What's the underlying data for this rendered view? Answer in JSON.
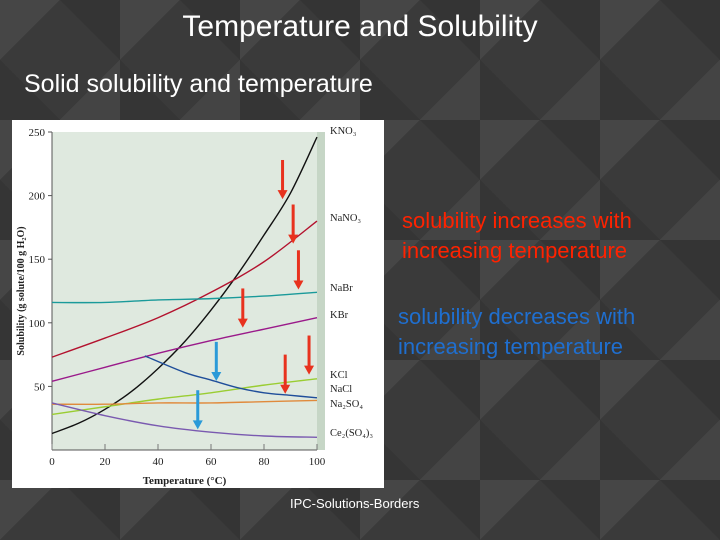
{
  "slide": {
    "title": "Temperature and Solubility",
    "subtitle": "Solid solubility and temperature",
    "callout_increase": "solubility increases with increasing temperature",
    "callout_decrease": "solubility decreases with increasing temperature",
    "footer": "IPC-Solutions-Borders"
  },
  "colors": {
    "increase_text": "#ff2200",
    "decrease_text": "#1f6fd0",
    "red_arrow": "#e8321e",
    "blue_arrow": "#2a9ad8"
  },
  "chart_data": {
    "type": "line",
    "xlabel": "Temperature (°C)",
    "ylabel": "Solubility (g solute/100 g H₂O)",
    "xlim": [
      0,
      100
    ],
    "ylim": [
      0,
      250
    ],
    "xticks": [
      0,
      20,
      40,
      60,
      80,
      100
    ],
    "yticks": [
      50,
      100,
      150,
      200,
      250
    ],
    "grid": false,
    "series": [
      {
        "name": "KNO₃",
        "color": "#111111",
        "x": [
          0,
          10,
          20,
          30,
          40,
          50,
          60,
          70,
          80,
          90,
          100
        ],
        "y": [
          13,
          21,
          32,
          46,
          64,
          85,
          110,
          138,
          169,
          202,
          246
        ]
      },
      {
        "name": "NaNO₃",
        "color": "#b3122e",
        "x": [
          0,
          20,
          40,
          60,
          80,
          100
        ],
        "y": [
          73,
          88,
          104,
          124,
          148,
          180
        ]
      },
      {
        "name": "NaBr",
        "color": "#1a9a9a",
        "x": [
          0,
          20,
          40,
          60,
          80,
          100
        ],
        "y": [
          116,
          116,
          118,
          119,
          121,
          124
        ]
      },
      {
        "name": "KBr",
        "color": "#9a1a8a",
        "x": [
          0,
          20,
          40,
          60,
          80,
          100
        ],
        "y": [
          54,
          65,
          76,
          86,
          95,
          104
        ]
      },
      {
        "name": "KCl",
        "color": "#9acd32",
        "x": [
          0,
          20,
          40,
          60,
          80,
          100
        ],
        "y": [
          28,
          34,
          40,
          45,
          51,
          56
        ]
      },
      {
        "name": "NaCl",
        "color": "#e08a3c",
        "x": [
          0,
          20,
          40,
          60,
          80,
          100
        ],
        "y": [
          36,
          36,
          37,
          37,
          38,
          39
        ]
      },
      {
        "name": "Na₂SO₄",
        "color": "#1f4e9a",
        "x": [
          35,
          50,
          60,
          70,
          80,
          90,
          100
        ],
        "y": [
          74,
          61,
          55,
          49,
          45,
          43,
          41
        ]
      },
      {
        "name": "Ce₂(SO₄)₃",
        "color": "#7a5ab0",
        "x": [
          0,
          20,
          40,
          60,
          80,
          100
        ],
        "y": [
          37,
          27,
          19,
          14,
          11,
          10
        ]
      }
    ],
    "annotations": {
      "increase_arrows": [
        {
          "x": 87,
          "y_start": 228,
          "y_end": 198
        },
        {
          "x": 91,
          "y_start": 193,
          "y_end": 163
        },
        {
          "x": 93,
          "y_start": 157,
          "y_end": 127
        },
        {
          "x": 72,
          "y_start": 127,
          "y_end": 97
        },
        {
          "x": 88,
          "y_start": 75,
          "y_end": 45
        },
        {
          "x": 97,
          "y_start": 90,
          "y_end": 60
        }
      ],
      "decrease_arrows": [
        {
          "x": 62,
          "y_start": 85,
          "y_end": 55
        },
        {
          "x": 55,
          "y_start": 47,
          "y_end": 17
        }
      ]
    }
  }
}
